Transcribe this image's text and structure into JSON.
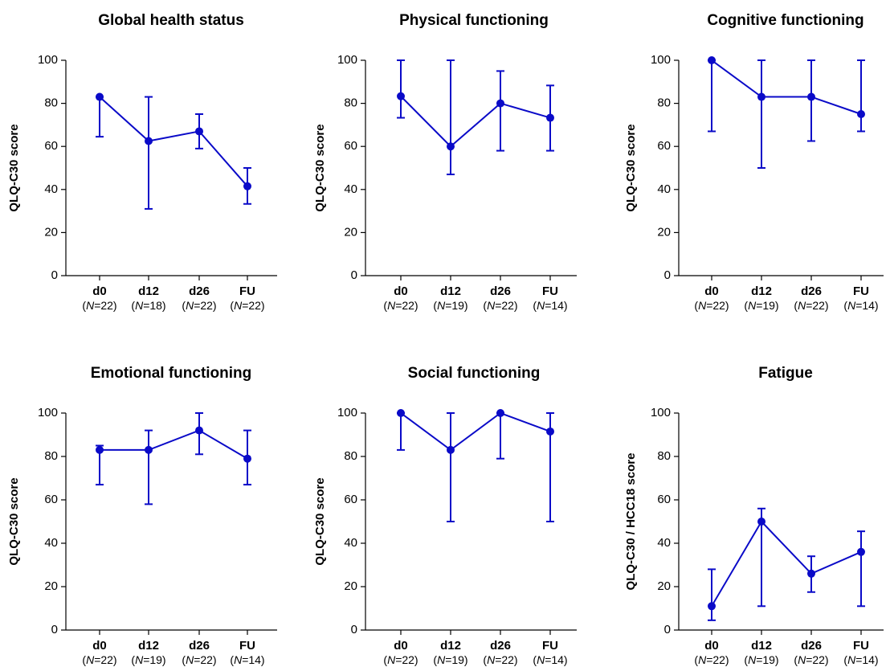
{
  "colors": {
    "series": "#0a0ac8",
    "axis": "#000000"
  },
  "chart_data": [
    {
      "type": "line",
      "title": "Global health status",
      "ylabel": "QLQ-C30 score",
      "ylim": [
        0,
        100
      ],
      "yticks": [
        "0",
        "20",
        "40",
        "60",
        "80",
        "100"
      ],
      "categories": [
        "d0",
        "d12",
        "d26",
        "FU"
      ],
      "n_labels": [
        [
          "N",
          "=22)"
        ],
        [
          "N",
          "=18)"
        ],
        [
          "N",
          "=22)"
        ],
        [
          "N",
          "=22)"
        ]
      ],
      "values": [
        83,
        62.5,
        67,
        41.5
      ],
      "err_low": [
        64.5,
        31,
        59,
        33.3
      ],
      "err_high": [
        83,
        83,
        75,
        50
      ],
      "grid": false,
      "legend": "none"
    },
    {
      "type": "line",
      "title": "Physical functioning",
      "ylabel": "QLQ-C30 score",
      "ylim": [
        0,
        100
      ],
      "yticks": [
        "0",
        "20",
        "40",
        "60",
        "80",
        "100"
      ],
      "categories": [
        "d0",
        "d12",
        "d26",
        "FU"
      ],
      "n_labels": [
        [
          "N",
          "=22)"
        ],
        [
          "N",
          "=19)"
        ],
        [
          "N",
          "=22)"
        ],
        [
          "N",
          "=14)"
        ]
      ],
      "values": [
        83.3,
        60,
        80,
        73.3
      ],
      "err_low": [
        73.3,
        47,
        58,
        58
      ],
      "err_high": [
        100,
        100,
        95,
        88.3
      ],
      "grid": false,
      "legend": "none"
    },
    {
      "type": "line",
      "title": "Cognitive functioning",
      "ylabel": "QLQ-C30 score",
      "ylim": [
        0,
        100
      ],
      "yticks": [
        "0",
        "20",
        "40",
        "60",
        "80",
        "100"
      ],
      "categories": [
        "d0",
        "d12",
        "d26",
        "FU"
      ],
      "n_labels": [
        [
          "N",
          "=22)"
        ],
        [
          "N",
          "=19)"
        ],
        [
          "N",
          "=22)"
        ],
        [
          "N",
          "=14)"
        ]
      ],
      "values": [
        100,
        83,
        83,
        75
      ],
      "err_low": [
        67,
        50,
        62.5,
        67
      ],
      "err_high": [
        100,
        100,
        100,
        100
      ],
      "grid": false,
      "legend": "none"
    },
    {
      "type": "line",
      "title": "Emotional functioning",
      "ylabel": "QLQ-C30 score",
      "ylim": [
        0,
        100
      ],
      "yticks": [
        "0",
        "20",
        "40",
        "60",
        "80",
        "100"
      ],
      "categories": [
        "d0",
        "d12",
        "d26",
        "FU"
      ],
      "n_labels": [
        [
          "N",
          "=22)"
        ],
        [
          "N",
          "=19)"
        ],
        [
          "N",
          "=22)"
        ],
        [
          "N",
          "=14)"
        ]
      ],
      "values": [
        83,
        83,
        92,
        79
      ],
      "err_low": [
        67,
        58,
        81,
        67
      ],
      "err_high": [
        85,
        92,
        100,
        92
      ],
      "grid": false,
      "legend": "none"
    },
    {
      "type": "line",
      "title": "Social functioning",
      "ylabel": "QLQ-C30 score",
      "ylim": [
        0,
        100
      ],
      "yticks": [
        "0",
        "20",
        "40",
        "60",
        "80",
        "100"
      ],
      "categories": [
        "d0",
        "d12",
        "d26",
        "FU"
      ],
      "n_labels": [
        [
          "N",
          "=22)"
        ],
        [
          "N",
          "=19)"
        ],
        [
          "N",
          "=22)"
        ],
        [
          "N",
          "=14)"
        ]
      ],
      "values": [
        100,
        83,
        100,
        91.5
      ],
      "err_low": [
        83,
        50,
        79,
        50
      ],
      "err_high": [
        100,
        100,
        100,
        100
      ],
      "grid": false,
      "legend": "none"
    },
    {
      "type": "line",
      "title": "Fatigue",
      "ylabel": "QLQ-C30 / HCC18 score",
      "ylim": [
        0,
        100
      ],
      "yticks": [
        "0",
        "20",
        "40",
        "60",
        "80",
        "100"
      ],
      "categories": [
        "d0",
        "d12",
        "d26",
        "FU"
      ],
      "n_labels": [
        [
          "N",
          "=22)"
        ],
        [
          "N",
          "=19)"
        ],
        [
          "N",
          "=22)"
        ],
        [
          "N",
          "=14)"
        ]
      ],
      "values": [
        11,
        50,
        26,
        36
      ],
      "err_low": [
        4.5,
        11,
        17.5,
        11
      ],
      "err_high": [
        28,
        56,
        34,
        45.5
      ],
      "grid": false,
      "legend": "none"
    }
  ]
}
